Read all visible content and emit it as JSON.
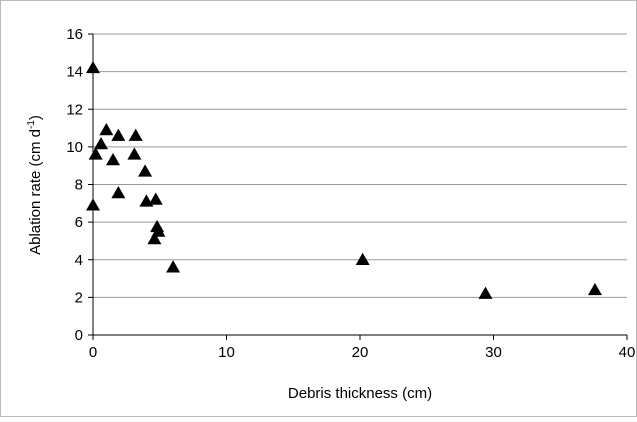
{
  "chart_data": {
    "type": "scatter",
    "xlabel": "Debris thickness (cm)",
    "ylabel": [
      "Ablation rate (cm d",
      "-1",
      ")"
    ],
    "x": [
      0,
      0,
      0.2,
      0.6,
      1,
      1.5,
      1.9,
      1.9,
      3.2,
      3.1,
      3.9,
      4,
      4.7,
      4.8,
      4.9,
      4.6,
      6,
      20.2,
      29.4,
      37.6
    ],
    "values": [
      14.2,
      6.9,
      9.6,
      10.15,
      10.9,
      9.3,
      10.6,
      7.55,
      10.6,
      9.6,
      8.7,
      7.1,
      7.2,
      5.75,
      5.5,
      5.1,
      3.6,
      4.0,
      2.2,
      2.4
    ],
    "color": "#000000",
    "xlim": [
      0,
      40
    ],
    "xticks": [
      0,
      10,
      20,
      30,
      40
    ],
    "ylim": [
      0,
      16
    ],
    "yticks": [
      0,
      2,
      4,
      6,
      8,
      10,
      12,
      14,
      16
    ],
    "grid": true
  }
}
